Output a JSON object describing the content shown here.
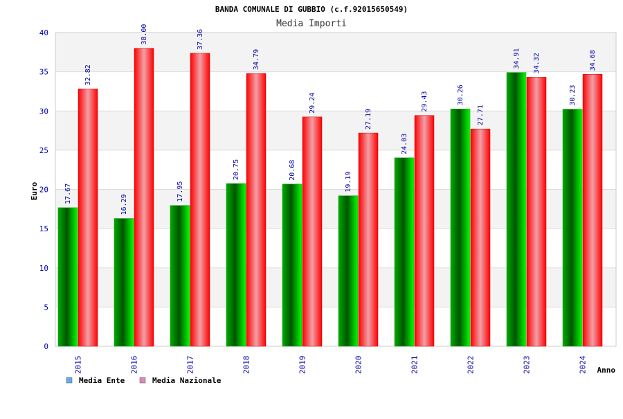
{
  "chart_data": {
    "type": "bar",
    "title": "BANDA COMUNALE DI GUBBIO (c.f.92015650549)",
    "subtitle": "Media Importi",
    "xlabel": "Anno",
    "ylabel": "Euro",
    "ylim": [
      0,
      40
    ],
    "yticks": [
      0,
      5,
      10,
      15,
      20,
      25,
      30,
      35,
      40
    ],
    "categories": [
      "2015",
      "2016",
      "2017",
      "2018",
      "2019",
      "2020",
      "2021",
      "2022",
      "2023",
      "2024"
    ],
    "series": [
      {
        "name": "Media Ente",
        "color": "#00cc00",
        "values": [
          17.67,
          16.29,
          17.95,
          20.75,
          20.68,
          19.19,
          24.03,
          30.26,
          34.91,
          30.23
        ],
        "labels": [
          "17.67",
          "16.29",
          "17.95",
          "20.75",
          "20.68",
          "19.19",
          "24.03",
          "30.26",
          "34.91",
          "30.23"
        ]
      },
      {
        "name": "Media Nazionale",
        "color": "#ff0000",
        "values": [
          32.82,
          38.0,
          37.36,
          34.79,
          29.24,
          27.19,
          29.43,
          27.71,
          34.32,
          34.68
        ],
        "labels": [
          "32.82",
          "38.00",
          "37.36",
          "34.79",
          "29.24",
          "27.19",
          "29.43",
          "27.71",
          "34.32",
          "34.68"
        ]
      }
    ],
    "legend": {
      "position": "bottom-left",
      "items": [
        {
          "label": "Media Ente",
          "color": "#66aaee"
        },
        {
          "label": "Media Nazionale",
          "color": "#dd88bb"
        }
      ]
    },
    "grid": true,
    "grid_band_color": "#f3f3f3"
  }
}
